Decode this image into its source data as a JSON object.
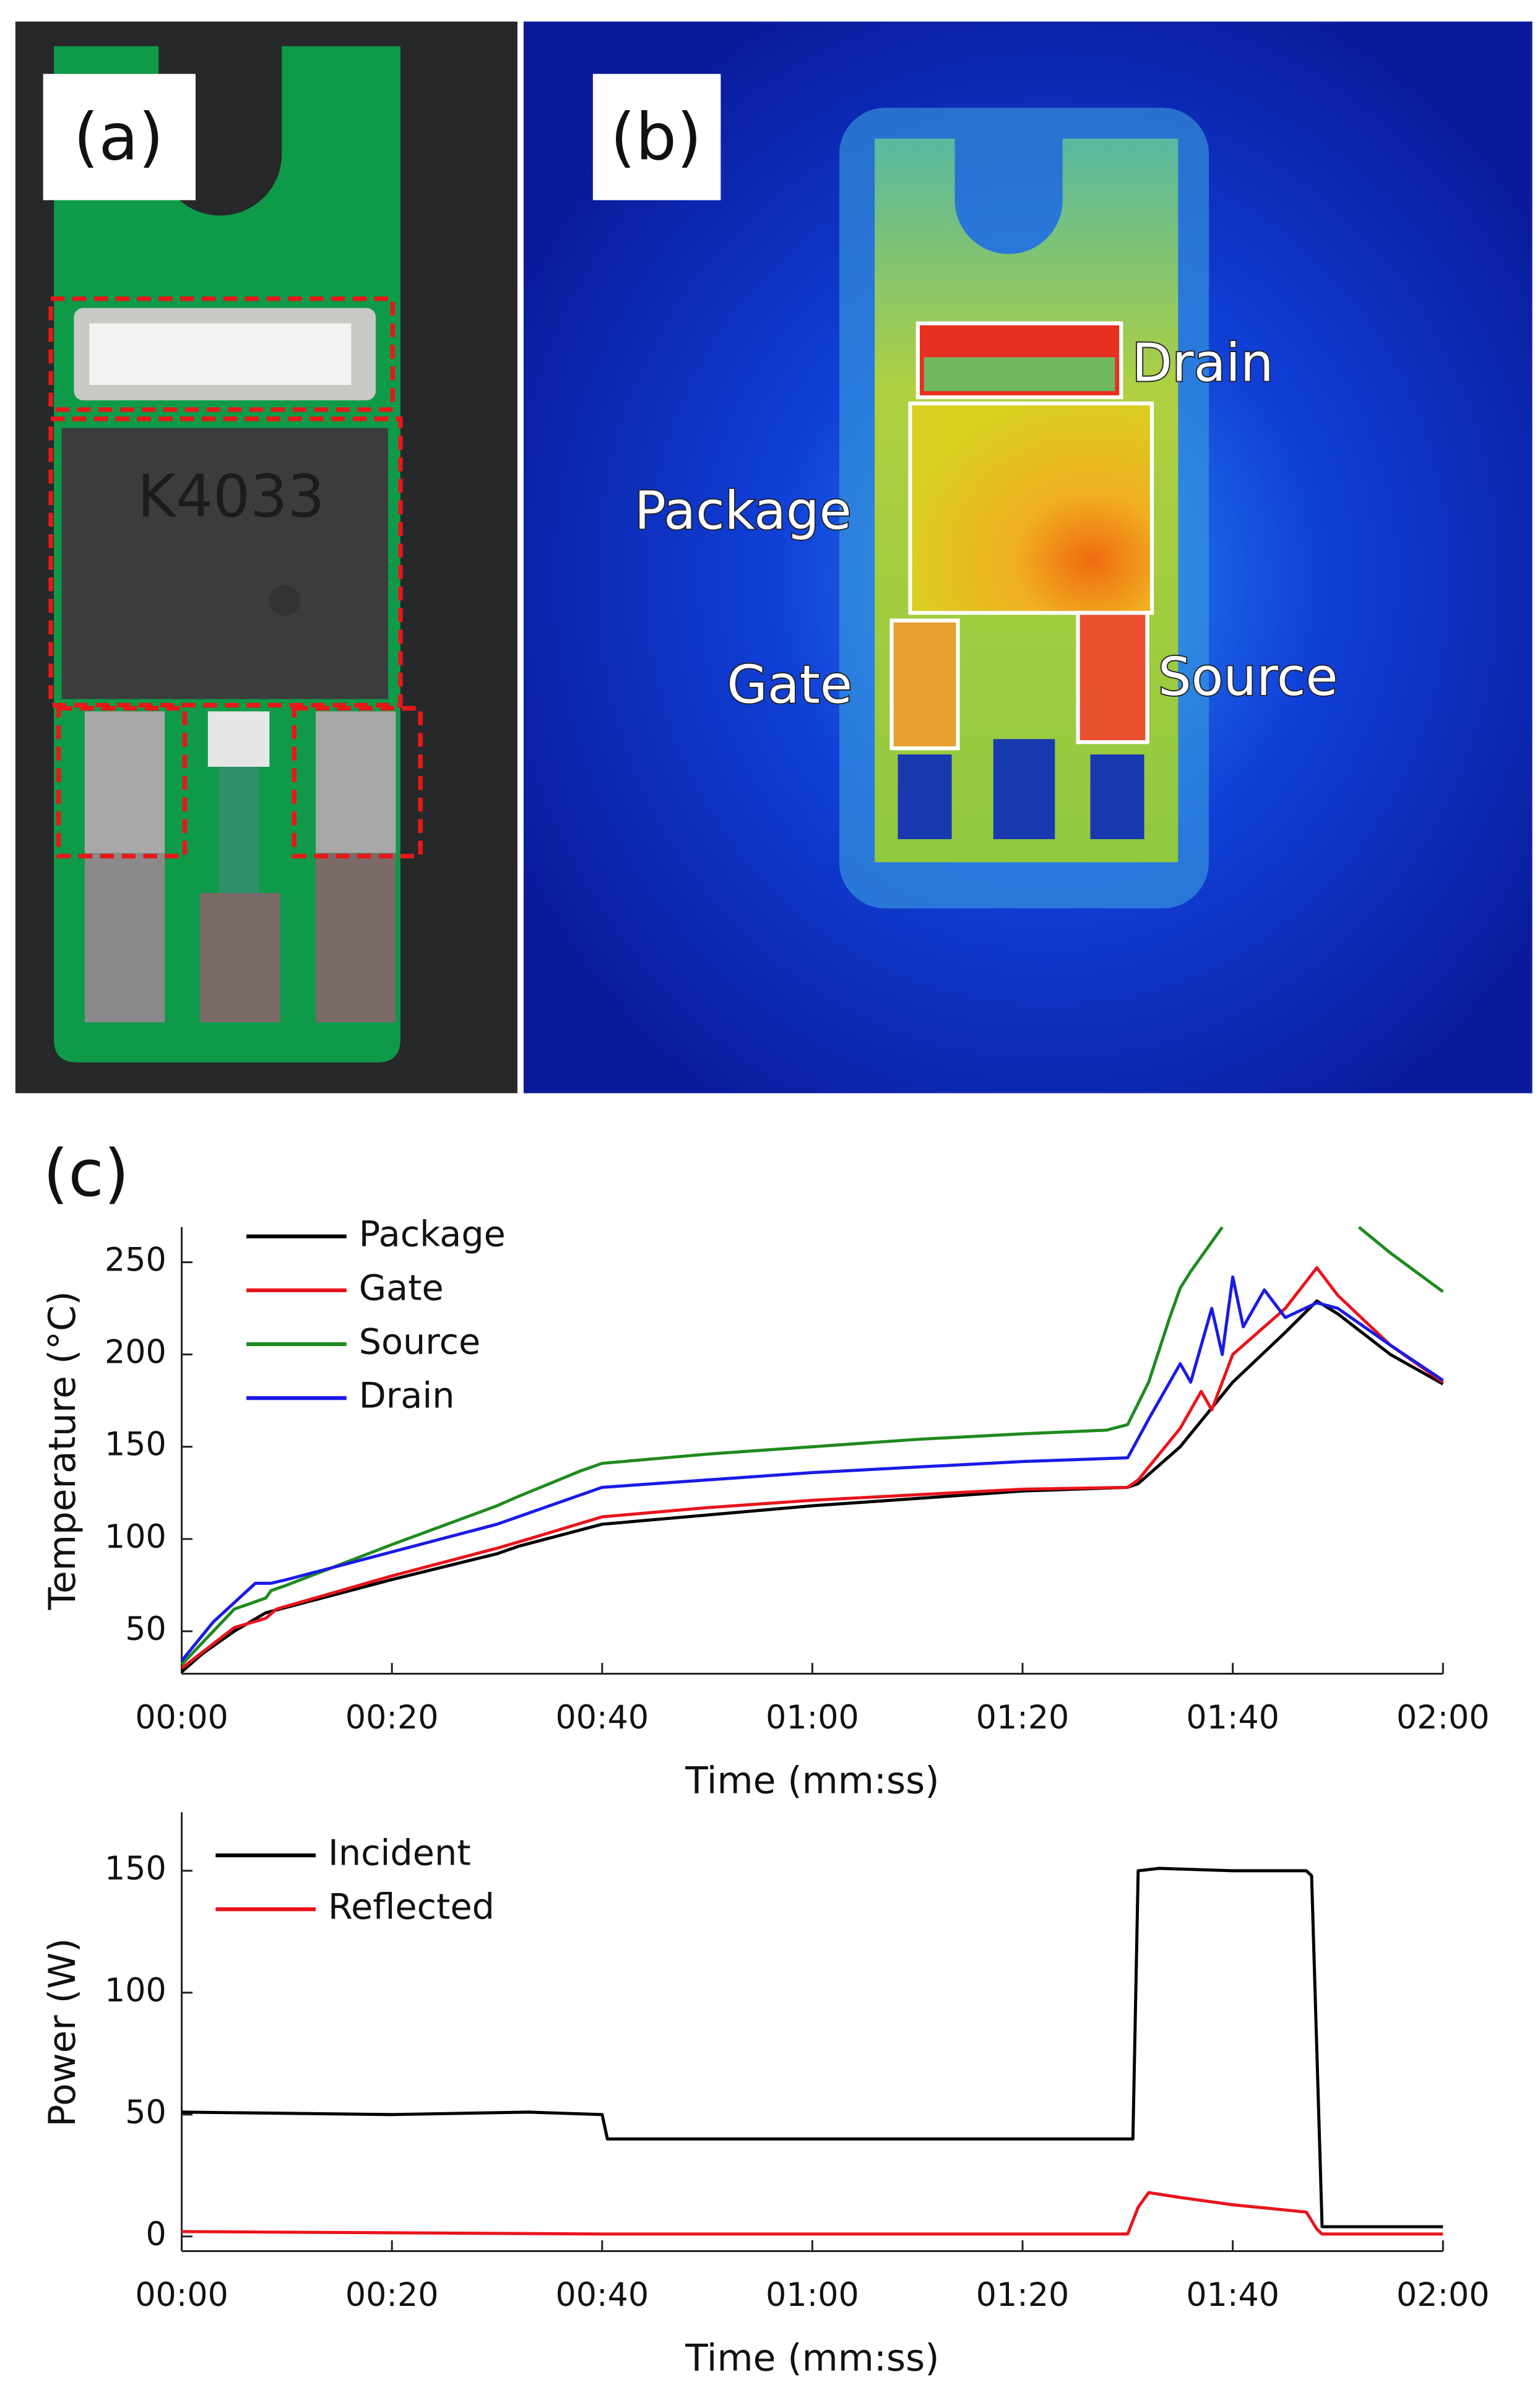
{
  "panels": {
    "a": {
      "label": "(a)",
      "chip_marking": "K4033"
    },
    "b": {
      "label": "(b)",
      "regions": [
        "Drain",
        "Package",
        "Gate",
        "Source"
      ]
    },
    "c": {
      "label": "(c)"
    }
  },
  "chart_data": [
    {
      "type": "line",
      "xlabel": "Time (mm:ss)",
      "ylabel": "Temperature (°C)",
      "xlim": [
        0,
        120
      ],
      "ylim": [
        27,
        269
      ],
      "xticks": [
        {
          "value": 0,
          "label": "00:00"
        },
        {
          "value": 20,
          "label": "00:20"
        },
        {
          "value": 40,
          "label": "00:40"
        },
        {
          "value": 60,
          "label": "01:00"
        },
        {
          "value": 80,
          "label": "01:20"
        },
        {
          "value": 100,
          "label": "01:40"
        },
        {
          "value": 120,
          "label": "02:00"
        }
      ],
      "yticks": [
        50,
        100,
        150,
        200,
        250
      ],
      "series": [
        {
          "name": "Package",
          "color": "#000000",
          "x": [
            0,
            2,
            5,
            8,
            10,
            20,
            30,
            32,
            40,
            50,
            60,
            70,
            80,
            90,
            91,
            95,
            100,
            105,
            108,
            110,
            115,
            120
          ],
          "values": [
            28,
            38,
            50,
            60,
            63,
            78,
            92,
            96,
            108,
            113,
            118,
            122,
            126,
            128,
            130,
            150,
            185,
            212,
            229,
            222,
            200,
            184
          ]
        },
        {
          "name": "Gate",
          "color": "#e8141c",
          "x": [
            0,
            5,
            8,
            9,
            20,
            30,
            33,
            40,
            50,
            60,
            70,
            80,
            90,
            91,
            95,
            97,
            98,
            100,
            105,
            108,
            110,
            115,
            120
          ],
          "values": [
            30,
            52,
            57,
            62,
            80,
            95,
            100,
            112,
            117,
            121,
            124,
            127,
            128,
            132,
            160,
            180,
            170,
            200,
            225,
            247,
            232,
            205,
            185
          ]
        },
        {
          "name": "Source",
          "color": "#1f8a1f",
          "x": [
            0,
            5,
            8,
            8.5,
            10,
            20,
            30,
            32,
            38,
            40,
            50,
            60,
            70,
            80,
            88,
            90,
            92,
            94,
            95,
            96,
            99,
            105,
            112,
            115,
            120
          ],
          "values": [
            32,
            62,
            68,
            72,
            75,
            97,
            118,
            123,
            137,
            141,
            146,
            150,
            154,
            157,
            159,
            162,
            185,
            220,
            236,
            245,
            269,
            null,
            269,
            255,
            234
          ]
        },
        {
          "name": "Drain",
          "color": "#1a1ae6",
          "x": [
            0,
            3,
            7,
            8.5,
            10,
            20,
            30,
            32,
            40,
            50,
            60,
            70,
            80,
            90,
            92,
            95,
            96,
            98,
            99,
            100,
            101,
            103,
            105,
            108,
            110,
            115,
            120
          ],
          "values": [
            34,
            55,
            76,
            76,
            78,
            93,
            108,
            112,
            128,
            132,
            136,
            139,
            142,
            144,
            165,
            195,
            185,
            225,
            200,
            242,
            215,
            235,
            220,
            228,
            225,
            205,
            186
          ]
        }
      ]
    },
    {
      "type": "line",
      "xlabel": "Time (mm:ss)",
      "ylabel": "Power (W)",
      "xlim": [
        0,
        120
      ],
      "ylim": [
        -6,
        174
      ],
      "xticks": [
        {
          "value": 0,
          "label": "00:00"
        },
        {
          "value": 20,
          "label": "00:20"
        },
        {
          "value": 40,
          "label": "00:40"
        },
        {
          "value": 60,
          "label": "01:00"
        },
        {
          "value": 80,
          "label": "01:20"
        },
        {
          "value": 100,
          "label": "01:40"
        },
        {
          "value": 120,
          "label": "02:00"
        }
      ],
      "yticks": [
        0,
        50,
        100,
        150
      ],
      "series": [
        {
          "name": "Incident",
          "color": "#000000",
          "x": [
            0,
            20,
            33,
            40,
            40.5,
            60,
            80,
            90.5,
            91,
            93,
            100,
            107,
            107.5,
            108.5,
            120
          ],
          "values": [
            51,
            50,
            51,
            50,
            40,
            40,
            40,
            40,
            150,
            151,
            150,
            150,
            148,
            4,
            4
          ]
        },
        {
          "name": "Reflected",
          "color": "#e8141c",
          "x": [
            0,
            40,
            90,
            91,
            92,
            95,
            100,
            107,
            108,
            108.5,
            120
          ],
          "values": [
            2,
            1,
            1,
            12,
            18,
            16,
            13,
            10,
            3,
            1,
            1
          ]
        }
      ]
    }
  ]
}
